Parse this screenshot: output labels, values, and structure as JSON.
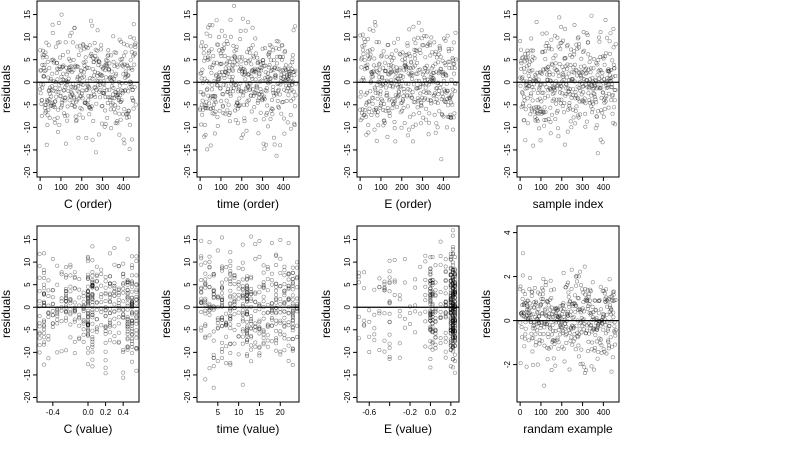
{
  "chart_data": [
    {
      "type": "scatter",
      "xlabel": "C (order)",
      "ylabel": "residuals",
      "xlim": [
        -15,
        475
      ],
      "ylim": [
        -21,
        18
      ],
      "xticks": [
        0,
        100,
        200,
        300,
        400
      ],
      "yticks": [
        -20,
        -15,
        -10,
        -5,
        0,
        5,
        10,
        15
      ],
      "hline": 0,
      "seed": 11,
      "n": 460,
      "sd": 5.5,
      "pattern": "index"
    },
    {
      "type": "scatter",
      "xlabel": "time (order)",
      "ylabel": "residuals",
      "xlim": [
        -15,
        475
      ],
      "ylim": [
        -21,
        18
      ],
      "xticks": [
        0,
        100,
        200,
        300,
        400
      ],
      "yticks": [
        -20,
        -15,
        -10,
        -5,
        0,
        5,
        10,
        15
      ],
      "hline": 0,
      "seed": 23,
      "n": 460,
      "sd": 5.5,
      "pattern": "index"
    },
    {
      "type": "scatter",
      "xlabel": "E (order)",
      "ylabel": "residuals",
      "xlim": [
        -15,
        475
      ],
      "ylim": [
        -21,
        18
      ],
      "xticks": [
        0,
        100,
        200,
        300,
        400
      ],
      "yticks": [
        -20,
        -15,
        -10,
        -5,
        0,
        5,
        10,
        15
      ],
      "hline": 0,
      "seed": 37,
      "n": 460,
      "sd": 5.5,
      "pattern": "index"
    },
    {
      "type": "scatter",
      "xlabel": "sample index",
      "ylabel": "residuals",
      "xlim": [
        -15,
        475
      ],
      "ylim": [
        -21,
        18
      ],
      "xticks": [
        0,
        100,
        200,
        300,
        400
      ],
      "yticks": [
        -20,
        -15,
        -10,
        -5,
        0,
        5,
        10,
        15
      ],
      "hline": 0,
      "seed": 41,
      "n": 460,
      "sd": 5.5,
      "pattern": "index"
    },
    {
      "type": "scatter",
      "xlabel": "C (value)",
      "ylabel": "residuals",
      "xlim": [
        -0.58,
        0.58
      ],
      "ylim": [
        -21,
        18
      ],
      "xticks": [
        -0.4,
        0.0,
        0.2,
        0.4
      ],
      "xtick_labels": [
        "-0.4",
        "0.0",
        "0.2",
        "0.4"
      ],
      "yticks": [
        -20,
        -15,
        -10,
        -5,
        0,
        5,
        10,
        15
      ],
      "hline": 0,
      "seed": 53,
      "n": 460,
      "sd": 5.5,
      "pattern": "levels",
      "levels": [
        -0.55,
        -0.5,
        -0.45,
        -0.4,
        -0.35,
        -0.3,
        -0.25,
        -0.2,
        -0.15,
        -0.1,
        -0.05,
        0.0,
        0.05,
        0.1,
        0.15,
        0.2,
        0.25,
        0.3,
        0.35,
        0.4,
        0.45,
        0.5,
        0.55
      ],
      "level_weights": [
        2,
        5,
        2,
        2,
        1,
        2,
        3,
        2,
        2,
        1,
        2,
        7,
        6,
        2,
        2,
        4,
        3,
        2,
        2,
        3,
        4,
        8,
        3
      ]
    },
    {
      "type": "scatter",
      "xlabel": "time (value)",
      "ylabel": "residuals",
      "xlim": [
        0,
        24.5
      ],
      "ylim": [
        -21,
        18
      ],
      "xticks": [
        5,
        10,
        15,
        20
      ],
      "yticks": [
        -20,
        -15,
        -10,
        -5,
        0,
        5,
        10,
        15
      ],
      "hline": 0,
      "seed": 67,
      "n": 460,
      "sd": 5.5,
      "pattern": "levels",
      "levels": [
        1,
        2,
        3,
        4,
        5,
        6,
        7,
        8,
        9,
        10,
        11,
        12,
        13,
        14,
        15,
        16,
        17,
        18,
        19,
        20,
        21,
        22,
        23,
        24
      ],
      "level_weights": [
        2,
        3,
        2,
        3,
        2,
        4,
        3,
        6,
        4,
        3,
        5,
        8,
        4,
        3,
        5,
        4,
        3,
        3,
        4,
        3,
        4,
        3,
        5,
        3
      ]
    },
    {
      "type": "scatter",
      "xlabel": "E (value)",
      "ylabel": "residuals",
      "xlim": [
        -0.72,
        0.28
      ],
      "ylim": [
        -21,
        18
      ],
      "xticks": [
        -0.6,
        -0.4,
        -0.2,
        0.0,
        0.2
      ],
      "xtick_labels": [
        "-0.6",
        "",
        "-0.2",
        "0.0",
        "0.2"
      ],
      "yticks": [
        -20,
        -15,
        -10,
        -5,
        0,
        5,
        10,
        15
      ],
      "hline": 0,
      "seed": 79,
      "n": 460,
      "sd": 5.5,
      "pattern": "levels",
      "levels": [
        -0.7,
        -0.65,
        -0.6,
        -0.55,
        -0.5,
        -0.45,
        -0.4,
        -0.35,
        -0.3,
        -0.25,
        -0.2,
        -0.15,
        -0.1,
        -0.05,
        0.0,
        0.02,
        0.05,
        0.1,
        0.15,
        0.2,
        0.22,
        0.24
      ],
      "level_weights": [
        2,
        1,
        1,
        1,
        1,
        2,
        3,
        1,
        2,
        1,
        1,
        1,
        1,
        2,
        10,
        6,
        3,
        2,
        4,
        14,
        22,
        16
      ]
    },
    {
      "type": "scatter",
      "xlabel": "randam example",
      "ylabel": "residuals",
      "xlim": [
        -15,
        475
      ],
      "ylim": [
        -3.7,
        4.3
      ],
      "xticks": [
        0,
        100,
        200,
        300,
        400
      ],
      "yticks": [
        -2,
        0,
        2,
        4
      ],
      "hline": 0,
      "seed": 97,
      "n": 460,
      "sd": 1.0,
      "pattern": "index"
    }
  ]
}
